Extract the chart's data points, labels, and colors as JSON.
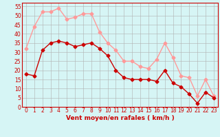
{
  "title": "",
  "xlabel": "Vent moyen/en rafales ( km/h )",
  "ylabel": "",
  "background_color": "#d6f5f5",
  "grid_color": "#b0b0b0",
  "ylim": [
    0,
    57
  ],
  "xlim": [
    -0.5,
    23.5
  ],
  "yticks": [
    0,
    5,
    10,
    15,
    20,
    25,
    30,
    35,
    40,
    45,
    50,
    55
  ],
  "xticks": [
    0,
    1,
    2,
    3,
    4,
    5,
    6,
    7,
    8,
    9,
    10,
    11,
    12,
    13,
    14,
    15,
    16,
    17,
    18,
    19,
    20,
    21,
    22,
    23
  ],
  "wind_avg": [
    18,
    17,
    31,
    35,
    36,
    35,
    33,
    34,
    35,
    32,
    28,
    20,
    16,
    15,
    15,
    15,
    14,
    20,
    13,
    11,
    7,
    2,
    8,
    5
  ],
  "wind_gust": [
    32,
    44,
    52,
    52,
    54,
    48,
    49,
    51,
    51,
    41,
    35,
    31,
    25,
    25,
    22,
    21,
    26,
    35,
    27,
    17,
    16,
    6,
    15,
    6
  ],
  "avg_color": "#cc0000",
  "gust_color": "#ff9999",
  "line_width": 1.0,
  "marker_size": 2.5,
  "tick_fontsize": 5.5,
  "xlabel_fontsize": 6.5
}
